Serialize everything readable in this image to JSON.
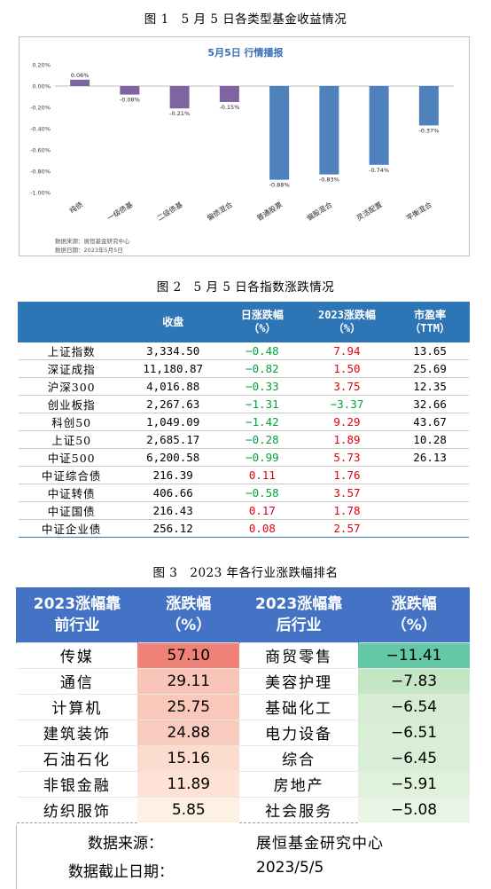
{
  "fig1": {
    "caption": "图 1　5 月 5 日各类型基金收益情况",
    "chart_title": "5月5日  行情播报",
    "source_line1": "数据来源：展恒基金研究中心",
    "source_line2": "数据日期：2023年5月5日",
    "chart_data": {
      "type": "bar",
      "title": "5月5日  行情播报",
      "categories": [
        "纯债",
        "一级债基",
        "二级债基",
        "偏债混合",
        "普通股票",
        "偏股混合",
        "灵活配置",
        "平衡混合"
      ],
      "values": [
        0.06,
        -0.08,
        -0.21,
        -0.15,
        -0.88,
        -0.83,
        -0.74,
        -0.37
      ],
      "value_labels": [
        "0.06%",
        "-0.08%",
        "-0.21%",
        "-0.15%",
        "-0.88%",
        "-0.83%",
        "-0.74%",
        "-0.37%"
      ],
      "colors": [
        "#8064a2",
        "#8064a2",
        "#8064a2",
        "#8064a2",
        "#4f81bd",
        "#4f81bd",
        "#4f81bd",
        "#4f81bd"
      ],
      "ylim": [
        -1.0,
        0.2
      ],
      "yticks": [
        0.2,
        0.0,
        -0.2,
        -0.4,
        -0.6,
        -0.8,
        -1.0
      ],
      "ytick_labels": [
        "0.20%",
        "0.00%",
        "-0.20%",
        "-0.40%",
        "-0.60%",
        "-0.80%",
        "-1.00%"
      ],
      "xlabel": "",
      "ylabel": "",
      "grid": false
    }
  },
  "fig2": {
    "caption": "图 2　5 月 5 日各指数涨跌情况",
    "headers": [
      "",
      "收盘",
      "日涨跌幅\n（%）",
      "2023涨跌幅\n（%）",
      "市盈率\n（TTM）"
    ],
    "rows": [
      {
        "name": "上证指数",
        "close": "3,334.50",
        "day": "−0.48",
        "day_sign": "neg",
        "ytd": "7.94",
        "ytd_sign": "pos",
        "pe": "13.65"
      },
      {
        "name": "深证成指",
        "close": "11,180.87",
        "day": "−0.82",
        "day_sign": "neg",
        "ytd": "1.50",
        "ytd_sign": "pos",
        "pe": "25.69"
      },
      {
        "name": "沪深300",
        "close": "4,016.88",
        "day": "−0.33",
        "day_sign": "neg",
        "ytd": "3.75",
        "ytd_sign": "pos",
        "pe": "12.35"
      },
      {
        "name": "创业板指",
        "close": "2,267.63",
        "day": "−1.31",
        "day_sign": "neg",
        "ytd": "−3.37",
        "ytd_sign": "neg",
        "pe": "32.66"
      },
      {
        "name": "科创50",
        "close": "1,049.09",
        "day": "−1.42",
        "day_sign": "neg",
        "ytd": "9.29",
        "ytd_sign": "pos",
        "pe": "43.67"
      },
      {
        "name": "上证50",
        "close": "2,685.17",
        "day": "−0.28",
        "day_sign": "neg",
        "ytd": "1.89",
        "ytd_sign": "pos",
        "pe": "10.28"
      },
      {
        "name": "中证500",
        "close": "6,200.58",
        "day": "−0.99",
        "day_sign": "neg",
        "ytd": "5.73",
        "ytd_sign": "pos",
        "pe": "26.13"
      },
      {
        "name": "中证综合债",
        "close": "216.39",
        "day": "0.11",
        "day_sign": "pos",
        "ytd": "1.76",
        "ytd_sign": "pos",
        "pe": ""
      },
      {
        "name": "中证转债",
        "close": "406.66",
        "day": "−0.58",
        "day_sign": "neg",
        "ytd": "3.57",
        "ytd_sign": "pos",
        "pe": ""
      },
      {
        "name": "中证国债",
        "close": "216.43",
        "day": "0.17",
        "day_sign": "pos",
        "ytd": "1.78",
        "ytd_sign": "pos",
        "pe": ""
      },
      {
        "name": "中证企业债",
        "close": "256.12",
        "day": "0.08",
        "day_sign": "pos",
        "ytd": "2.57",
        "ytd_sign": "pos",
        "pe": ""
      }
    ],
    "colors": {
      "header_bg": "#2e75b6",
      "down": "#00a23a",
      "up": "#e60012"
    }
  },
  "fig3": {
    "caption": "图 3　2023 年各行业涨跌幅排名",
    "headers": [
      "2023涨幅靠\n前行业",
      "涨跌幅\n（%）",
      "2023涨幅靠\n后行业",
      "涨跌幅\n（%）"
    ],
    "rows": [
      {
        "top_name": "传媒",
        "top_val": "57.10",
        "top_bg": "#f08178",
        "bot_name": "商贸零售",
        "bot_val": "−11.41",
        "bot_bg": "#63c8a8"
      },
      {
        "top_name": "通信",
        "top_val": "29.11",
        "top_bg": "#f9c5b8",
        "bot_name": "美容护理",
        "bot_val": "−7.83",
        "bot_bg": "#c5e6c5"
      },
      {
        "top_name": "计算机",
        "top_val": "25.75",
        "top_bg": "#f9c8bb",
        "bot_name": "基础化工",
        "bot_val": "−6.54",
        "bot_bg": "#d6edd3"
      },
      {
        "top_name": "建筑装饰",
        "top_val": "24.88",
        "top_bg": "#f9ccbf",
        "bot_name": "电力设备",
        "bot_val": "−6.51",
        "bot_bg": "#d8eed5"
      },
      {
        "top_name": "石油石化",
        "top_val": "15.16",
        "top_bg": "#fcdcce",
        "bot_name": "综合",
        "bot_val": "−6.45",
        "bot_bg": "#d9eed6"
      },
      {
        "top_name": "非银金融",
        "top_val": "11.89",
        "top_bg": "#fde2d5",
        "bot_name": "房地产",
        "bot_val": "−5.91",
        "bot_bg": "#e0f1dc"
      },
      {
        "top_name": "纺织服饰",
        "top_val": "5.85",
        "top_bg": "#fdf1e4",
        "bot_name": "社会服务",
        "bot_val": "−5.08",
        "bot_bg": "#e9f5e5"
      }
    ],
    "source_label": "数据来源：",
    "source_value": "展恒基金研究中心",
    "date_label": "数据截止日期：",
    "date_value": "2023/5/5",
    "colors": {
      "header_bg": "#4472c4"
    }
  }
}
